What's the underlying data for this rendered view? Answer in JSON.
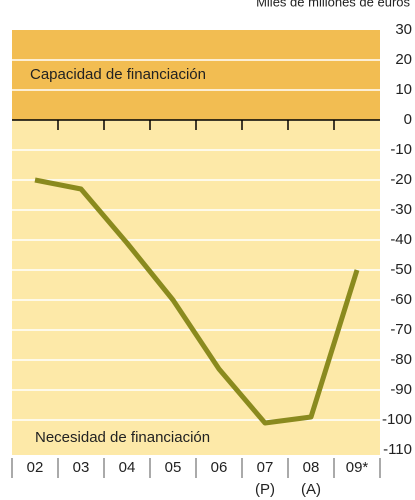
{
  "chart_data": {
    "type": "line",
    "title": "Miles de millones de euros",
    "categories": [
      "02",
      "03",
      "04",
      "05",
      "06",
      "07",
      "08",
      "09*"
    ],
    "category_notes": [
      null,
      null,
      null,
      null,
      null,
      "(P)",
      "(A)",
      null
    ],
    "series": [
      {
        "name": "Capacidad/necesidad de financiación",
        "color": "#8a8a1e",
        "values": [
          -20,
          -23,
          -41,
          -60,
          -83,
          -101,
          -99,
          -50
        ]
      }
    ],
    "annotations": [
      "Capacidad de financiación",
      "Necesidad de financiación"
    ],
    "ylim": [
      30,
      -110
    ],
    "yticks": [
      30,
      20,
      10,
      0,
      -10,
      -20,
      -30,
      -40,
      -50,
      -60,
      -70,
      -80,
      -90,
      -100,
      -110
    ],
    "grid": true
  }
}
